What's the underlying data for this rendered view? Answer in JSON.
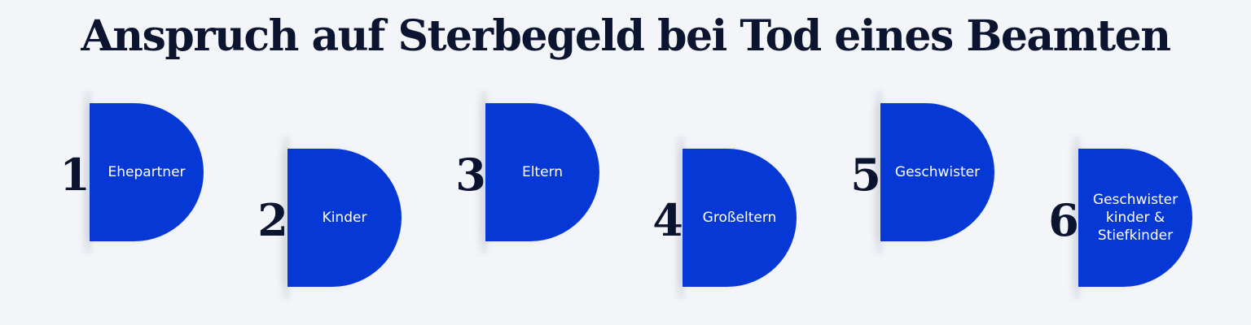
{
  "title": "Anspruch auf Sterbegeld bei Tod eines Beamten",
  "colors": {
    "background": "#f3f5f9",
    "accent": "#0638d6",
    "text_dark": "#0b1530",
    "text_light": "#ffffff"
  },
  "steps": [
    {
      "number": "1",
      "label": "Ehepartner"
    },
    {
      "number": "2",
      "label": "Kinder"
    },
    {
      "number": "3",
      "label": "Eltern"
    },
    {
      "number": "4",
      "label": "Großeltern"
    },
    {
      "number": "5",
      "label": "Geschwister"
    },
    {
      "number": "6",
      "label": "Geschwister\nkinder &\nStiefkinder"
    }
  ]
}
